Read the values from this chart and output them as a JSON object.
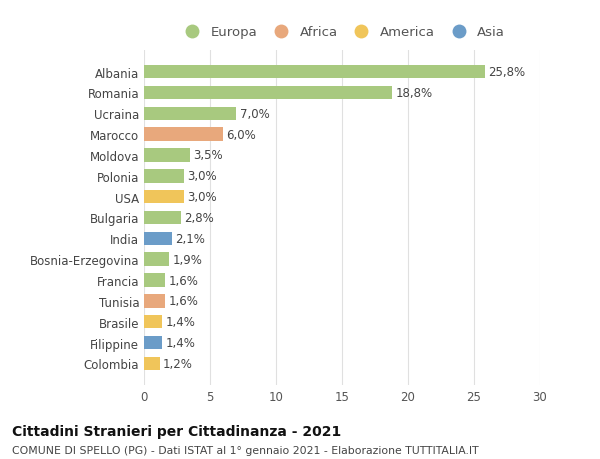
{
  "countries": [
    "Albania",
    "Romania",
    "Ucraina",
    "Marocco",
    "Moldova",
    "Polonia",
    "USA",
    "Bulgaria",
    "India",
    "Bosnia-Erzegovina",
    "Francia",
    "Tunisia",
    "Brasile",
    "Filippine",
    "Colombia"
  ],
  "values": [
    25.8,
    18.8,
    7.0,
    6.0,
    3.5,
    3.0,
    3.0,
    2.8,
    2.1,
    1.9,
    1.6,
    1.6,
    1.4,
    1.4,
    1.2
  ],
  "labels": [
    "25,8%",
    "18,8%",
    "7,0%",
    "6,0%",
    "3,5%",
    "3,0%",
    "3,0%",
    "2,8%",
    "2,1%",
    "1,9%",
    "1,6%",
    "1,6%",
    "1,4%",
    "1,4%",
    "1,2%"
  ],
  "continents": [
    "Europa",
    "Europa",
    "Europa",
    "Africa",
    "Europa",
    "Europa",
    "America",
    "Europa",
    "Asia",
    "Europa",
    "Europa",
    "Africa",
    "America",
    "Asia",
    "America"
  ],
  "continent_colors": {
    "Europa": "#a8c97f",
    "Africa": "#e8a87c",
    "America": "#f0c55a",
    "Asia": "#6b9cc8"
  },
  "legend_order": [
    "Europa",
    "Africa",
    "America",
    "Asia"
  ],
  "title": "Cittadini Stranieri per Cittadinanza - 2021",
  "subtitle": "COMUNE DI SPELLO (PG) - Dati ISTAT al 1° gennaio 2021 - Elaborazione TUTTITALIA.IT",
  "xlim": [
    0,
    30
  ],
  "xticks": [
    0,
    5,
    10,
    15,
    20,
    25,
    30
  ],
  "background_color": "#ffffff",
  "grid_color": "#e0e0e0",
  "bar_height": 0.65,
  "label_fontsize": 8.5,
  "tick_fontsize": 8.5,
  "legend_fontsize": 9.5,
  "title_fontsize": 10,
  "subtitle_fontsize": 7.8
}
